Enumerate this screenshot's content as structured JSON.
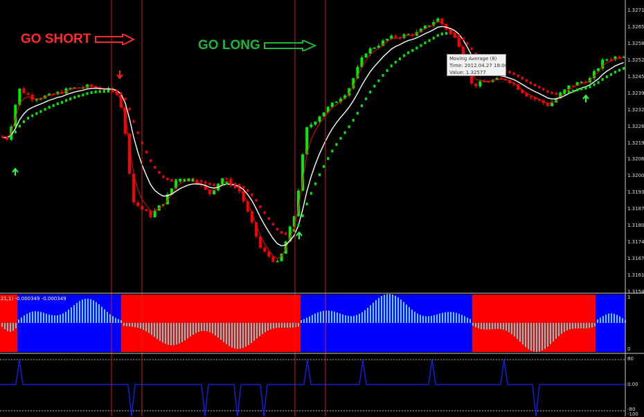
{
  "annotations": {
    "go_short": "GO SHORT",
    "go_long": "GO LONG"
  },
  "tooltip": {
    "line1": "Moving Average (8)",
    "line2": "Time: 2012.04.27 18:00",
    "line3": "Value: 1.32577"
  },
  "indicator_label": "21,1) -0.000349 -0.000349",
  "price_axis": [
    "1.32715",
    "1.32650",
    "1.32585",
    "1.32520",
    "1.32455",
    "1.32390",
    "1.32325",
    "1.32260",
    "1.32195",
    "1.32065",
    "1.32000",
    "1.31935",
    "1.31870",
    "1.31805",
    "1.31740",
    "1.31675",
    "1.31610",
    "1.31545"
  ],
  "histogram_axis": [
    "1",
    "0"
  ],
  "oscillator_axis": [
    "80",
    "0.00",
    "-80",
    "-100"
  ],
  "colors": {
    "bull": "#00ee00",
    "bear": "#ff0000",
    "ma_fast": "#ff0000",
    "ma_slow": "#ffffff",
    "hist_red": "#ff0000",
    "hist_blue": "#0000ff",
    "hist_bar": "#66cccc",
    "osc": "#1122ff",
    "vline": "#cc2222"
  },
  "chart_data": {
    "type": "candlestick",
    "ylim": [
      1.31545,
      1.32715
    ],
    "close_points": [
      [
        0,
        1.3219
      ],
      [
        10,
        1.3218
      ],
      [
        25,
        1.3239
      ],
      [
        45,
        1.3235
      ],
      [
        70,
        1.3236
      ],
      [
        100,
        1.3239
      ],
      [
        130,
        1.324
      ],
      [
        170,
        1.3237
      ],
      [
        178,
        1.3222
      ],
      [
        190,
        1.3192
      ],
      [
        215,
        1.3186
      ],
      [
        235,
        1.3192
      ],
      [
        255,
        1.3202
      ],
      [
        280,
        1.3201
      ],
      [
        300,
        1.3195
      ],
      [
        320,
        1.3202
      ],
      [
        345,
        1.3196
      ],
      [
        375,
        1.3172
      ],
      [
        400,
        1.3166
      ],
      [
        425,
        1.3188
      ],
      [
        440,
        1.3222
      ],
      [
        460,
        1.3228
      ],
      [
        500,
        1.3238
      ],
      [
        525,
        1.3254
      ],
      [
        560,
        1.326
      ],
      [
        600,
        1.3262
      ],
      [
        630,
        1.3268
      ],
      [
        660,
        1.3258
      ],
      [
        680,
        1.324
      ],
      [
        700,
        1.3242
      ],
      [
        730,
        1.3243
      ],
      [
        760,
        1.3236
      ],
      [
        790,
        1.3232
      ],
      [
        820,
        1.324
      ],
      [
        850,
        1.3243
      ],
      [
        870,
        1.3251
      ],
      [
        900,
        1.3253
      ]
    ],
    "bands": [
      {
        "from": 0,
        "to": 25,
        "color": "red"
      },
      {
        "from": 25,
        "to": 175,
        "color": "blue"
      },
      {
        "from": 175,
        "to": 434,
        "color": "red"
      },
      {
        "from": 434,
        "to": 682,
        "color": "blue"
      },
      {
        "from": 682,
        "to": 860,
        "color": "red"
      },
      {
        "from": 860,
        "to": 903,
        "color": "blue"
      }
    ],
    "signals": {
      "short_down_arrows": [
        173
      ],
      "long_up_arrows": [
        22,
        432,
        846
      ]
    },
    "vertical_lines": [
      161,
      205,
      426,
      470
    ],
    "oscillator_spikes": [
      {
        "x": 28,
        "v": 80
      },
      {
        "x": 190,
        "v": -100
      },
      {
        "x": 296,
        "v": -100
      },
      {
        "x": 343,
        "v": -100
      },
      {
        "x": 381,
        "v": -100
      },
      {
        "x": 444,
        "v": 80
      },
      {
        "x": 524,
        "v": 80
      },
      {
        "x": 624,
        "v": 80
      },
      {
        "x": 728,
        "v": 80
      },
      {
        "x": 774,
        "v": -100
      }
    ]
  }
}
